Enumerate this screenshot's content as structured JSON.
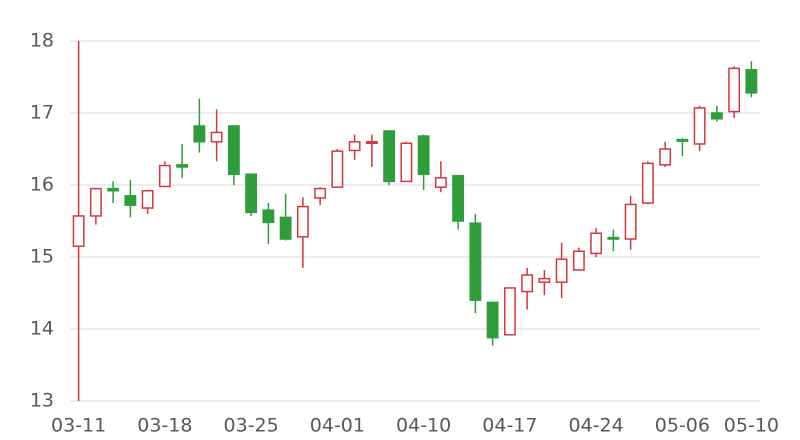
{
  "chart_data": {
    "type": "candlestick",
    "categories": [
      "03-11",
      null,
      null,
      null,
      null,
      "03-18",
      null,
      null,
      null,
      null,
      "03-25",
      null,
      null,
      null,
      null,
      "04-01",
      null,
      null,
      null,
      null,
      "04-10",
      null,
      null,
      null,
      null,
      "04-17",
      null,
      null,
      null,
      null,
      "04-24",
      null,
      null,
      null,
      null,
      "05-06",
      null,
      null,
      null,
      "05-10"
    ],
    "open": [
      15.15,
      15.57,
      15.95,
      15.85,
      15.68,
      15.98,
      16.28,
      16.82,
      16.6,
      16.82,
      16.15,
      15.65,
      15.55,
      15.28,
      15.82,
      15.97,
      16.48,
      16.58,
      16.75,
      16.05,
      16.68,
      15.97,
      16.13,
      15.47,
      14.37,
      13.92,
      14.52,
      14.65,
      14.65,
      14.82,
      15.05,
      15.27,
      15.25,
      15.75,
      16.28,
      16.63,
      16.57,
      17.0,
      17.02,
      17.6
    ],
    "high": [
      18,
      15.95,
      16.05,
      16.07,
      15.93,
      16.33,
      16.57,
      17.2,
      17.05,
      16.82,
      16.15,
      15.75,
      15.88,
      15.83,
      15.97,
      16.5,
      16.7,
      16.7,
      16.75,
      16.6,
      16.7,
      16.33,
      16.13,
      15.6,
      14.37,
      14.57,
      14.85,
      14.82,
      15.2,
      15.13,
      15.4,
      15.38,
      15.85,
      16.33,
      16.6,
      16.65,
      17.1,
      17.1,
      17.65,
      17.72
    ],
    "low": [
      13,
      15.45,
      15.75,
      15.55,
      15.6,
      15.97,
      16.1,
      16.45,
      16.33,
      16.0,
      15.57,
      15.18,
      15.23,
      14.85,
      15.72,
      15.97,
      16.35,
      16.25,
      16.0,
      16.05,
      15.93,
      15.9,
      15.38,
      14.22,
      13.77,
      13.92,
      14.27,
      14.47,
      14.43,
      14.82,
      15.0,
      15.08,
      15.1,
      15.73,
      16.25,
      16.4,
      16.47,
      16.88,
      16.93,
      17.22
    ],
    "close": [
      15.57,
      15.95,
      15.92,
      15.72,
      15.92,
      16.27,
      16.25,
      16.6,
      16.73,
      16.15,
      15.62,
      15.48,
      15.25,
      15.7,
      15.95,
      16.47,
      16.6,
      16.6,
      16.05,
      16.58,
      16.15,
      16.1,
      15.5,
      14.4,
      13.88,
      14.57,
      14.75,
      14.7,
      14.97,
      15.08,
      15.33,
      15.25,
      15.73,
      16.3,
      16.5,
      16.62,
      17.07,
      16.92,
      17.62,
      17.28
    ],
    "up_color": "#d2383f",
    "down_color": "#2f9e3a",
    "ylim": [
      13,
      18
    ],
    "yticks": [
      13,
      14,
      15,
      16,
      17,
      18
    ],
    "grid": true
  }
}
